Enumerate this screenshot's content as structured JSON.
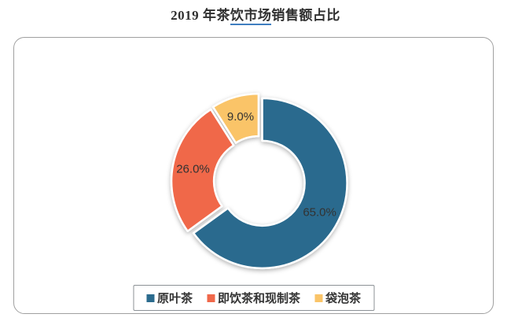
{
  "title": {
    "prefix": "2019 年茶",
    "linked_text": "饮市场",
    "suffix": "销售额占比",
    "link_underline_color": "#3f7ec0"
  },
  "chart_data": {
    "type": "pie",
    "title": "2019 年茶饮市场销售额占比",
    "donut": true,
    "start_angle_deg": 0,
    "direction": "clockwise",
    "legend_position": "bottom",
    "label_color": "#333333",
    "series": [
      {
        "name": "原叶茶",
        "value": 65.0,
        "label": "65.0%",
        "color": "#2b6b8e"
      },
      {
        "name": "即饮茶和现制茶",
        "value": 26.0,
        "label": "26.0%",
        "color": "#f0684a"
      },
      {
        "name": "袋泡茶",
        "value": 9.0,
        "label": "9.0%",
        "color": "#fac468"
      }
    ]
  }
}
